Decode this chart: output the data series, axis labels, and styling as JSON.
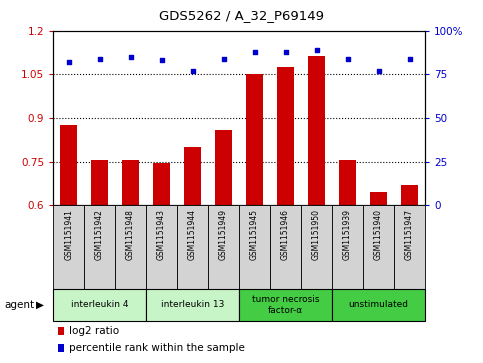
{
  "title": "GDS5262 / A_32_P69149",
  "samples": [
    "GSM1151941",
    "GSM1151942",
    "GSM1151948",
    "GSM1151943",
    "GSM1151944",
    "GSM1151949",
    "GSM1151945",
    "GSM1151946",
    "GSM1151950",
    "GSM1151939",
    "GSM1151940",
    "GSM1151947"
  ],
  "log2_ratio": [
    0.875,
    0.755,
    0.755,
    0.745,
    0.8,
    0.86,
    1.05,
    1.075,
    1.115,
    0.755,
    0.645,
    0.67
  ],
  "percentile": [
    82,
    84,
    85,
    83,
    77,
    84,
    88,
    88,
    89,
    84,
    77,
    84
  ],
  "bar_color": "#cc0000",
  "dot_color": "#0000cc",
  "groups": [
    {
      "label": "interleukin 4",
      "start": 0,
      "end": 3,
      "color": "#c8f5c8"
    },
    {
      "label": "interleukin 13",
      "start": 3,
      "end": 6,
      "color": "#c8f5c8"
    },
    {
      "label": "tumor necrosis\nfactor-α",
      "start": 6,
      "end": 9,
      "color": "#44cc44"
    },
    {
      "label": "unstimulated",
      "start": 9,
      "end": 12,
      "color": "#44cc44"
    }
  ],
  "ylim_left": [
    0.6,
    1.2
  ],
  "ylim_right": [
    0,
    100
  ],
  "yticks_left": [
    0.6,
    0.75,
    0.9,
    1.05,
    1.2
  ],
  "yticks_right": [
    0,
    25,
    50,
    75,
    100
  ],
  "ytick_labels_right": [
    "0",
    "25",
    "50",
    "75",
    "100%"
  ],
  "hlines": [
    0.75,
    0.9,
    1.05
  ],
  "background_color": "#ffffff",
  "legend_items": [
    "log2 ratio",
    "percentile rank within the sample"
  ],
  "agent_label": "agent",
  "sample_box_color": "#d3d3d3"
}
